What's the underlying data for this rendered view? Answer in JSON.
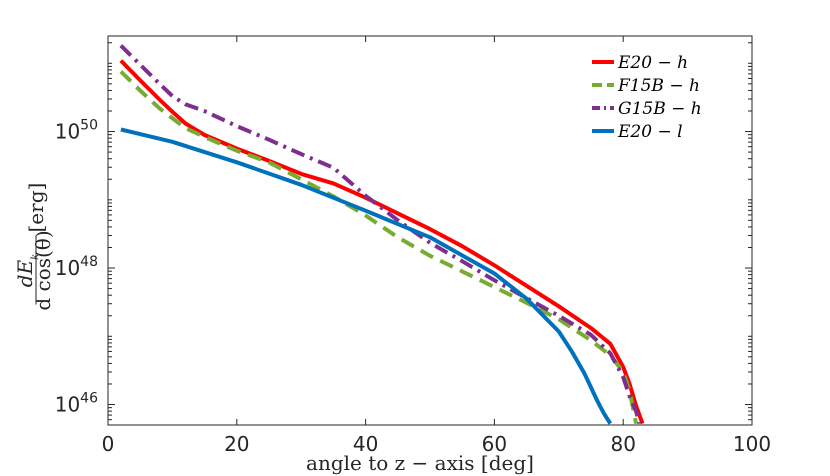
{
  "chart_data": {
    "type": "line",
    "title": "",
    "xlabel": "angle to z − axis [deg]",
    "ylabel": "dE_k / d cos(θ) [erg]",
    "ylabel_parts": {
      "numerator": "dE",
      "numerator_sub": "k",
      "denominator": "d cos(θ)",
      "unit": "[erg]"
    },
    "xscale": "linear",
    "yscale": "log",
    "xlim": [
      0,
      100
    ],
    "ylim_log10": [
      45.7,
      51.4
    ],
    "xticks": [
      0,
      20,
      40,
      60,
      80,
      100
    ],
    "xtick_labels": [
      "0",
      "20",
      "40",
      "60",
      "80",
      "100"
    ],
    "yticks_log10": [
      46,
      48,
      50
    ],
    "ytick_labels": [
      {
        "base": "10",
        "exp": "46"
      },
      {
        "base": "10",
        "exp": "48"
      },
      {
        "base": "10",
        "exp": "50"
      }
    ],
    "grid": false,
    "legend_position": "top-right",
    "series": [
      {
        "name": "E20 − h",
        "color": "#ff0000",
        "dash": "solid",
        "x": [
          2,
          5,
          8,
          10,
          12,
          15,
          20,
          25,
          30,
          35,
          40,
          45,
          50,
          55,
          60,
          65,
          70,
          75,
          78,
          80,
          81,
          82,
          83
        ],
        "log10y": [
          51.04,
          50.75,
          50.47,
          50.29,
          50.12,
          49.95,
          49.75,
          49.57,
          49.38,
          49.24,
          49.03,
          48.8,
          48.57,
          48.32,
          48.04,
          47.74,
          47.44,
          47.12,
          46.89,
          46.55,
          46.3,
          45.98,
          45.72
        ]
      },
      {
        "name": "F15B − h",
        "color": "#77ac30",
        "dash": "dashed",
        "x": [
          2,
          5,
          8,
          12,
          15,
          20,
          25,
          30,
          35,
          40,
          45,
          50,
          55,
          60,
          65,
          70,
          75,
          78,
          80,
          81,
          82
        ],
        "log10y": [
          50.88,
          50.6,
          50.34,
          50.05,
          49.92,
          49.72,
          49.55,
          49.3,
          49.05,
          48.77,
          48.45,
          48.18,
          47.95,
          47.72,
          47.49,
          47.25,
          46.94,
          46.72,
          46.48,
          46.2,
          45.72
        ]
      },
      {
        "name": "G15B − h",
        "color": "#7e2f8e",
        "dash": "dashdot",
        "x": [
          2,
          5,
          8,
          10,
          12,
          15,
          20,
          25,
          30,
          35,
          40,
          45,
          50,
          55,
          60,
          65,
          70,
          75,
          78,
          80,
          81,
          82,
          82.5
        ],
        "log10y": [
          51.26,
          50.98,
          50.7,
          50.52,
          50.4,
          50.3,
          50.08,
          49.88,
          49.67,
          49.47,
          49.06,
          48.7,
          48.37,
          48.1,
          47.82,
          47.56,
          47.3,
          47.02,
          46.75,
          46.4,
          46.12,
          45.9,
          45.72
        ]
      },
      {
        "name": "E20 − l",
        "color": "#0072bd",
        "dash": "solid",
        "x": [
          2,
          10,
          20,
          30,
          40,
          50,
          60,
          65,
          70,
          72,
          74,
          76,
          77,
          78
        ],
        "log10y": [
          50.03,
          49.85,
          49.55,
          49.22,
          48.84,
          48.45,
          47.92,
          47.55,
          47.07,
          46.78,
          46.45,
          46.05,
          45.87,
          45.72
        ]
      }
    ]
  }
}
